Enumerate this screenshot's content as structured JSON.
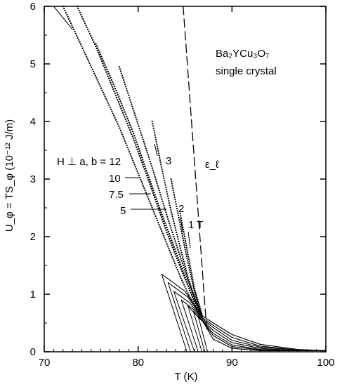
{
  "chart_data": {
    "type": "line",
    "xlabel": "T (K)",
    "ylabel": "U_φ = TS_φ (10⁻¹² J/m)",
    "xlim": [
      70,
      100
    ],
    "ylim": [
      0,
      6
    ],
    "x_ticks": [
      "70",
      "80",
      "90",
      "100"
    ],
    "y_ticks": [
      "0",
      "1",
      "2",
      "3",
      "4",
      "5",
      "6"
    ],
    "legend": "none",
    "grid": false,
    "annotations": {
      "compound": "Ba₂YCu₃O₇",
      "sample": "single crystal",
      "field_prefix": "H ⊥ a, b = 12",
      "label_10": "10",
      "label_7_5": "7.5",
      "label_5": "5",
      "label_3": "3",
      "label_2": "2",
      "label_1T": "1 T",
      "epsilon": "ε_ℓ"
    },
    "series": [
      {
        "field": "12",
        "style": "dotted",
        "x": [
          72.0,
          74.0,
          76.0,
          78.0,
          80.0,
          82.0,
          83.5,
          84.5,
          85.5,
          86.5
        ],
        "y": [
          6.0,
          5.3,
          4.6,
          3.9,
          3.1,
          2.3,
          1.7,
          1.3,
          0.95,
          0.65
        ]
      },
      {
        "field": "10",
        "style": "dotted",
        "x": [
          73.5,
          75.5,
          77.5,
          79.5,
          81.5,
          83.0,
          84.3,
          85.3,
          86.2,
          86.8
        ],
        "y": [
          6.0,
          5.3,
          4.5,
          3.7,
          2.8,
          2.1,
          1.55,
          1.15,
          0.8,
          0.62
        ]
      },
      {
        "field": "7.5",
        "style": "dotted",
        "x": [
          75.5,
          77.5,
          79.5,
          81.0,
          82.5,
          84.0,
          85.0,
          86.0,
          86.8
        ],
        "y": [
          5.35,
          4.6,
          3.8,
          3.1,
          2.4,
          1.75,
          1.3,
          0.85,
          0.6
        ]
      },
      {
        "field": "5",
        "style": "dotted",
        "x": [
          78.0,
          80.0,
          81.5,
          83.0,
          84.3,
          85.3,
          86.2,
          86.9
        ],
        "y": [
          4.95,
          3.95,
          3.2,
          2.4,
          1.75,
          1.25,
          0.85,
          0.6
        ]
      },
      {
        "field": "3",
        "style": "dotted",
        "x": [
          81.5,
          82.5,
          83.5,
          84.5,
          85.3,
          86.2,
          86.9
        ],
        "y": [
          4.0,
          3.2,
          2.45,
          1.8,
          1.3,
          0.85,
          0.6
        ]
      },
      {
        "field": "2",
        "style": "dotted",
        "x": [
          83.5,
          84.5,
          85.3,
          86.0,
          86.7
        ],
        "y": [
          3.0,
          2.2,
          1.55,
          1.05,
          0.65
        ]
      },
      {
        "field": "1 T",
        "style": "dotted",
        "x": [
          84.5,
          85.3,
          86.0,
          86.8
        ],
        "y": [
          2.4,
          1.7,
          1.1,
          0.65
        ]
      },
      {
        "field": "12",
        "style": "solid",
        "x": [
          82.5,
          85.0,
          86.8,
          88.0,
          90.0,
          93.0,
          97.0,
          100.0
        ],
        "y": [
          1.35,
          1.05,
          0.63,
          0.5,
          0.3,
          0.13,
          0.04,
          0.02
        ]
      },
      {
        "field": "10",
        "style": "solid",
        "x": [
          83.2,
          85.3,
          86.8,
          88.0,
          90.0,
          93.0,
          97.0,
          100.0
        ],
        "y": [
          1.2,
          0.95,
          0.6,
          0.46,
          0.25,
          0.1,
          0.03,
          0.02
        ]
      },
      {
        "field": "7.5",
        "style": "solid",
        "x": [
          83.8,
          85.5,
          86.8,
          88.0,
          90.0,
          93.0,
          97.0,
          100.0
        ],
        "y": [
          1.05,
          0.85,
          0.58,
          0.42,
          0.2,
          0.08,
          0.03,
          0.02
        ]
      },
      {
        "field": "5",
        "style": "solid",
        "x": [
          84.6,
          85.8,
          86.8,
          88.0,
          90.0,
          93.0,
          97.0,
          100.0
        ],
        "y": [
          0.9,
          0.75,
          0.56,
          0.37,
          0.16,
          0.06,
          0.02,
          0.02
        ]
      },
      {
        "field": "3",
        "style": "solid",
        "x": [
          85.3,
          86.1,
          86.8,
          88.0,
          90.0,
          93.0,
          97.0,
          100.0
        ],
        "y": [
          0.8,
          0.65,
          0.55,
          0.32,
          0.12,
          0.04,
          0.02,
          0.02
        ]
      },
      {
        "field": "2",
        "style": "solid",
        "x": [
          85.9,
          86.4,
          86.8,
          88.0,
          90.0,
          93.0,
          97.0,
          100.0
        ],
        "y": [
          0.7,
          0.6,
          0.54,
          0.28,
          0.09,
          0.03,
          0.02,
          0.02
        ]
      },
      {
        "field": "1 T",
        "style": "solid",
        "x": [
          86.4,
          86.7,
          87.0,
          88.0,
          90.0,
          93.0,
          97.0,
          100.0
        ],
        "y": [
          0.62,
          0.57,
          0.5,
          0.22,
          0.06,
          0.02,
          0.02,
          0.02
        ]
      },
      {
        "field": "12",
        "style": "fit",
        "x": [
          82.5,
          85.2
        ],
        "y": [
          1.35,
          0.0
        ]
      },
      {
        "field": "10",
        "style": "fit",
        "x": [
          83.2,
          85.6
        ],
        "y": [
          1.2,
          0.0
        ]
      },
      {
        "field": "7.5",
        "style": "fit",
        "x": [
          83.8,
          86.0
        ],
        "y": [
          1.05,
          0.0
        ]
      },
      {
        "field": "5",
        "style": "fit",
        "x": [
          84.6,
          86.4
        ],
        "y": [
          0.9,
          0.0
        ]
      },
      {
        "field": "3",
        "style": "fit",
        "x": [
          85.3,
          86.8
        ],
        "y": [
          0.8,
          0.0
        ]
      },
      {
        "field": "2",
        "style": "fit",
        "x": [
          85.9,
          87.1
        ],
        "y": [
          0.7,
          0.0
        ]
      },
      {
        "field": "1 T",
        "style": "fit",
        "x": [
          86.4,
          87.4
        ],
        "y": [
          0.62,
          0.0
        ]
      },
      {
        "field": "12",
        "style": "fit",
        "x": [
          71.0,
          73.0
        ],
        "y": [
          6.0,
          5.6
        ]
      },
      {
        "field": "",
        "style": "dashed",
        "x": [
          84.8,
          87.3
        ],
        "y": [
          6.0,
          0.4
        ]
      }
    ]
  }
}
